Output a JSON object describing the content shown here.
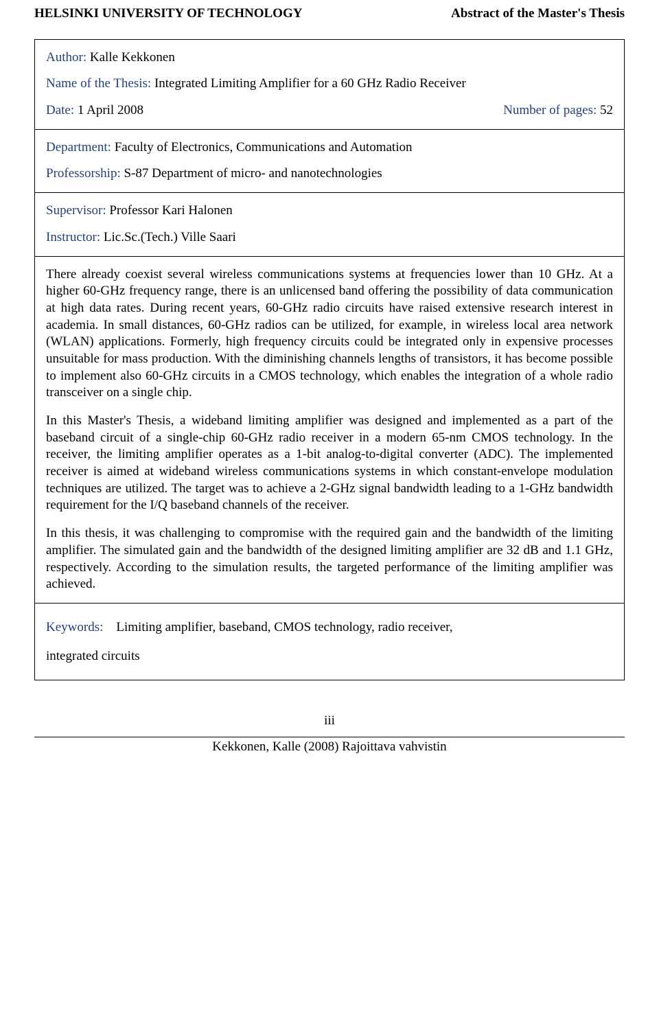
{
  "header": {
    "left": "HELSINKI UNIVERSITY OF TECHNOLOGY",
    "right": "Abstract of the Master's Thesis"
  },
  "box1": {
    "author_label": "Author:",
    "author_value": "Kalle Kekkonen",
    "thesis_label": "Name of the Thesis:",
    "thesis_value": "Integrated Limiting Amplifier for a 60 GHz Radio Receiver",
    "date_label": "Date:",
    "date_value": "1 April 2008",
    "pages_label": "Number of pages:",
    "pages_value": "52"
  },
  "box2": {
    "dept_label": "Department:",
    "dept_value": "Faculty of Electronics, Communications and Automation",
    "prof_label": "Professorship:",
    "prof_value": "S-87 Department of micro- and nanotechnologies"
  },
  "box3": {
    "supervisor_label": "Supervisor:",
    "supervisor_value": "Professor Kari Halonen",
    "instructor_label": "Instructor:",
    "instructor_value": "Lic.Sc.(Tech.) Ville Saari"
  },
  "abstract": {
    "p1": "There already coexist several wireless communications systems at frequencies lower than 10 GHz. At a higher 60-GHz frequency range, there is an unlicensed band offering the possibility of data communication at high data rates. During recent years, 60-GHz radio circuits have raised extensive research interest in academia. In small distances, 60-GHz radios can be utilized, for example, in wireless local area network (WLAN) applications. Formerly, high frequency circuits could be integrated only in expensive processes unsuitable for mass production. With the diminishing channels lengths of transistors, it has become possible to implement also 60-GHz circuits in a CMOS technology, which enables the integration of a whole radio transceiver on a single chip.",
    "p2": "In this Master's Thesis, a wideband limiting amplifier was designed and implemented as a part of the baseband circuit of a single-chip 60-GHz radio receiver in a modern 65-nm CMOS technology. In the receiver, the limiting amplifier operates as a 1-bit analog-to-digital converter (ADC). The implemented receiver is aimed at wideband wireless communications systems in which constant-envelope modulation techniques are utilized. The target was to achieve a 2-GHz signal bandwidth leading to a 1-GHz bandwidth requirement for the I/Q baseband channels of the receiver.",
    "p3": "In this thesis, it was challenging to compromise with the required gain and the bandwidth of the limiting amplifier. The simulated gain and the bandwidth of the designed limiting amplifier are 32 dB and 1.1 GHz, respectively. According to the simulation results, the targeted performance of the limiting amplifier was achieved."
  },
  "keywords": {
    "label": "Keywords:",
    "value_part1": "Limiting amplifier, baseband, CMOS technology, radio receiver,",
    "value_part2": "integrated circuits"
  },
  "page_number": "iii",
  "footer": "Kekkonen, Kalle (2008) Rajoittava vahvistin"
}
